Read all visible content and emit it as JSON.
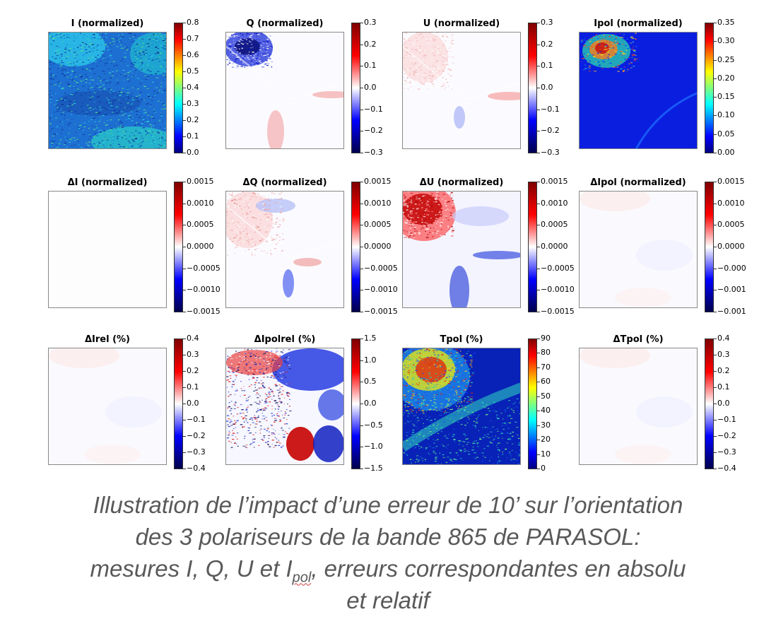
{
  "colors": {
    "jet": [
      "#00007f",
      "#0000ff",
      "#007fff",
      "#00ffff",
      "#7fff7f",
      "#ffff00",
      "#ff7f00",
      "#ff0000",
      "#7f0000"
    ],
    "seismic": [
      "#00004c",
      "#0000ff",
      "#ffffff",
      "#ff0000",
      "#7f0000"
    ],
    "caption": "#595959"
  },
  "panels": [
    {
      "title": "I   (normalized)",
      "cmap": "jet",
      "ticks": [
        "0.8",
        "0.7",
        "0.6",
        "0.5",
        "0.4",
        "0.3",
        "0.2",
        "0.1",
        "0.0"
      ],
      "pattern": "intensity"
    },
    {
      "title": "Q   (normalized)",
      "cmap": "seismic",
      "ticks": [
        "0.3",
        "0.2",
        "0.1",
        "0.0",
        "−0.1",
        "−0.2",
        "−0.3"
      ],
      "pattern": "q"
    },
    {
      "title": "U   (normalized)",
      "cmap": "seismic",
      "ticks": [
        "0.3",
        "0.2",
        "0.1",
        "0.0",
        "−0.1",
        "−0.2",
        "−0.3"
      ],
      "pattern": "u"
    },
    {
      "title": "Ipol   (normalized)",
      "cmap": "jet",
      "ticks": [
        "0.35",
        "0.30",
        "0.25",
        "0.20",
        "0.15",
        "0.10",
        "0.05",
        "0.00"
      ],
      "pattern": "ipol"
    },
    {
      "title": "ΔI   (normalized)",
      "cmap": "seismic",
      "ticks": [
        "0.0015",
        "0.0010",
        "0.0005",
        "0.0000",
        "−0.0005",
        "−0.0010",
        "−0.0015"
      ],
      "pattern": "blank"
    },
    {
      "title": "ΔQ   (normalized)",
      "cmap": "seismic",
      "ticks": [
        "0.0015",
        "0.0010",
        "0.0005",
        "0.0000",
        "−0.0005",
        "−0.0010",
        "−0.0015"
      ],
      "pattern": "dq"
    },
    {
      "title": "ΔU   (normalized)",
      "cmap": "seismic",
      "ticks": [
        "0.0015",
        "0.0010",
        "0.0005",
        "0.0000",
        "−0.0005",
        "−0.0010",
        "−0.0015"
      ],
      "pattern": "du"
    },
    {
      "title": "ΔIpol   (normalized)",
      "cmap": "seismic",
      "ticks": [
        "0.0015",
        "0.0010",
        "0.0005",
        "0.0000",
        "−0.000",
        "−0.001",
        "−0.001"
      ],
      "pattern": "faint"
    },
    {
      "title": "ΔIrel (%)",
      "cmap": "seismic",
      "ticks": [
        "0.4",
        "0.3",
        "0.2",
        "0.1",
        "0.0",
        "−0.1",
        "−0.2",
        "−0.3",
        "−0.4"
      ],
      "pattern": "faint"
    },
    {
      "title": "ΔIpolrel (%)",
      "cmap": "seismic",
      "ticks": [
        "1.5",
        "1.0",
        "0.5",
        "0.0",
        "−0.5",
        "−1.0",
        "−1.5"
      ],
      "pattern": "ipolrel"
    },
    {
      "title": "Tpol   (%)",
      "cmap": "jet",
      "ticks": [
        "90",
        "80",
        "70",
        "60",
        "50",
        "40",
        "30",
        "20",
        "10",
        "0"
      ],
      "pattern": "tpol"
    },
    {
      "title": "ΔTpol   (%)",
      "cmap": "seismic",
      "ticks": [
        "0.4",
        "0.3",
        "0.2",
        "0.1",
        "0.0",
        "−0.1",
        "−0.2",
        "−0.3",
        "−0.4"
      ],
      "pattern": "faint"
    }
  ],
  "caption": {
    "line1": "Illustration de l’impact d’une erreur de 10’ sur l’orientation",
    "line2": "des 3 polariseurs de la bande 865 de PARASOL:",
    "line3_pre": "mesures I, Q, U et I",
    "line3_sub": "pol",
    "line3_post": ", erreurs correspondantes en absolu",
    "line4": "et relatif"
  }
}
